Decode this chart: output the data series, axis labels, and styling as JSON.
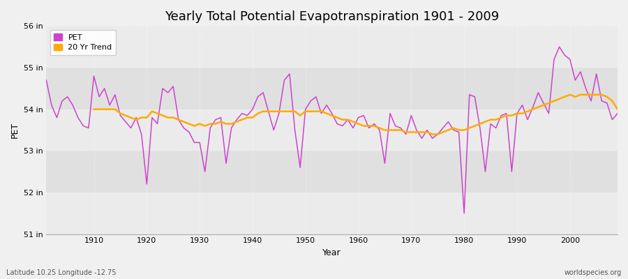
{
  "title": "Yearly Total Potential Evapotranspiration 1901 - 2009",
  "xlabel": "Year",
  "ylabel": "PET",
  "xlim": [
    1901,
    2009
  ],
  "ylim": [
    51,
    56
  ],
  "yticks": [
    51,
    52,
    53,
    54,
    55,
    56
  ],
  "ytick_labels": [
    "51 in",
    "52 in",
    "53 in",
    "54 in",
    "55 in",
    "56 in"
  ],
  "xticks": [
    1910,
    1920,
    1930,
    1940,
    1950,
    1960,
    1970,
    1980,
    1990,
    2000
  ],
  "bg_color": "#f0f0f0",
  "plot_bg_color": "#e8e8e8",
  "band_color_light": "#ebebeb",
  "band_color_dark": "#e0e0e0",
  "pet_color": "#cc44cc",
  "trend_color": "#ffaa00",
  "pet_linewidth": 1.1,
  "trend_linewidth": 1.8,
  "title_fontsize": 13,
  "axis_label_fontsize": 9,
  "tick_fontsize": 8,
  "footer_left": "Latitude 10.25 Longitude -12.75",
  "footer_right": "worldspecies.org",
  "years": [
    1901,
    1902,
    1903,
    1904,
    1905,
    1906,
    1907,
    1908,
    1909,
    1910,
    1911,
    1912,
    1913,
    1914,
    1915,
    1916,
    1917,
    1918,
    1919,
    1920,
    1921,
    1922,
    1923,
    1924,
    1925,
    1926,
    1927,
    1928,
    1929,
    1930,
    1931,
    1932,
    1933,
    1934,
    1935,
    1936,
    1937,
    1938,
    1939,
    1940,
    1941,
    1942,
    1943,
    1944,
    1945,
    1946,
    1947,
    1948,
    1949,
    1950,
    1951,
    1952,
    1953,
    1954,
    1955,
    1956,
    1957,
    1958,
    1959,
    1960,
    1961,
    1962,
    1963,
    1964,
    1965,
    1966,
    1967,
    1968,
    1969,
    1970,
    1971,
    1972,
    1973,
    1974,
    1975,
    1976,
    1977,
    1978,
    1979,
    1980,
    1981,
    1982,
    1983,
    1984,
    1985,
    1986,
    1987,
    1988,
    1989,
    1990,
    1991,
    1992,
    1993,
    1994,
    1995,
    1996,
    1997,
    1998,
    1999,
    2000,
    2001,
    2002,
    2003,
    2004,
    2005,
    2006,
    2007,
    2008,
    2009
  ],
  "pet_values": [
    54.7,
    54.1,
    53.8,
    54.2,
    54.3,
    54.1,
    53.8,
    53.6,
    53.55,
    54.8,
    54.3,
    54.5,
    54.1,
    54.35,
    53.85,
    53.7,
    53.55,
    53.8,
    53.4,
    52.2,
    53.8,
    53.65,
    54.5,
    54.4,
    54.55,
    53.75,
    53.55,
    53.45,
    53.2,
    53.2,
    52.5,
    53.55,
    53.75,
    53.8,
    52.7,
    53.55,
    53.75,
    53.9,
    53.85,
    54.0,
    54.3,
    54.4,
    53.95,
    53.5,
    53.9,
    54.7,
    54.85,
    53.5,
    52.6,
    54.0,
    54.2,
    54.3,
    53.9,
    54.1,
    53.9,
    53.65,
    53.6,
    53.75,
    53.55,
    53.8,
    53.85,
    53.55,
    53.65,
    53.5,
    52.7,
    53.9,
    53.6,
    53.55,
    53.4,
    53.85,
    53.5,
    53.3,
    53.5,
    53.3,
    53.4,
    53.55,
    53.7,
    53.5,
    53.45,
    51.5,
    54.35,
    54.3,
    53.55,
    52.5,
    53.65,
    53.55,
    53.85,
    53.9,
    52.5,
    53.9,
    54.1,
    53.75,
    54.05,
    54.4,
    54.15,
    53.9,
    55.2,
    55.5,
    55.3,
    55.2,
    54.7,
    54.9,
    54.5,
    54.2,
    54.85,
    54.2,
    54.15,
    53.75,
    53.9
  ],
  "trend_values": [
    null,
    null,
    null,
    null,
    null,
    null,
    null,
    null,
    null,
    54.0,
    54.0,
    54.0,
    54.0,
    54.0,
    53.9,
    53.85,
    53.8,
    53.75,
    53.8,
    53.8,
    53.95,
    53.9,
    53.85,
    53.8,
    53.8,
    53.75,
    53.7,
    53.65,
    53.6,
    53.65,
    53.6,
    53.65,
    53.65,
    53.7,
    53.65,
    53.65,
    53.7,
    53.75,
    53.8,
    53.8,
    53.9,
    53.95,
    53.95,
    53.95,
    53.95,
    53.95,
    53.95,
    53.95,
    53.85,
    53.95,
    53.95,
    53.95,
    53.95,
    53.9,
    53.85,
    53.8,
    53.75,
    53.75,
    53.7,
    53.65,
    53.6,
    53.6,
    53.6,
    53.55,
    53.5,
    53.5,
    53.5,
    53.5,
    53.45,
    53.45,
    53.45,
    53.45,
    53.45,
    53.4,
    53.4,
    53.45,
    53.5,
    53.55,
    53.5,
    53.5,
    53.55,
    53.6,
    53.65,
    53.7,
    53.75,
    53.75,
    53.8,
    53.85,
    53.85,
    53.9,
    53.9,
    53.95,
    54.0,
    54.05,
    54.1,
    54.15,
    54.2,
    54.25,
    54.3,
    54.35,
    54.3,
    54.35,
    54.35,
    54.35,
    54.35,
    54.35,
    54.3,
    54.2,
    54.0
  ]
}
